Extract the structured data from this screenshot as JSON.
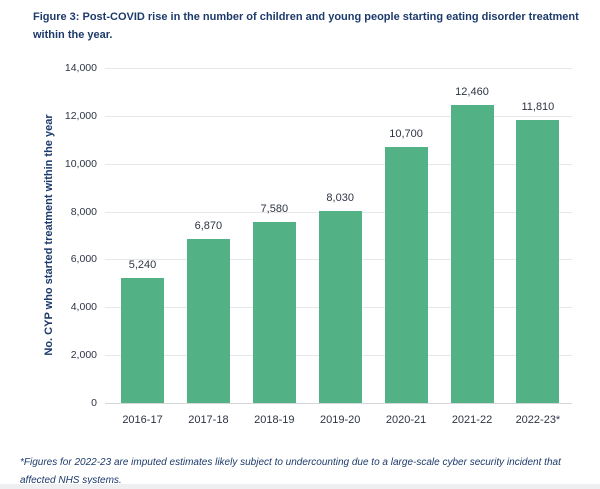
{
  "figure": {
    "title": "Figure 3: Post-COVID rise in the number of children and young people starting eating disorder treatment within the year.",
    "footnote": "*Figures for 2022-23 are imputed estimates likely subject to undercounting due to a large-scale cyber security incident that affected NHS systems."
  },
  "chart_data": {
    "type": "bar",
    "title": "Figure 3: Post-COVID rise in the number of children and young people starting eating disorder treatment within the year.",
    "categories": [
      "2016-17",
      "2017-18",
      "2018-19",
      "2019-20",
      "2020-21",
      "2021-22",
      "2022-23*"
    ],
    "values": [
      5240,
      6870,
      7580,
      8030,
      10700,
      12460,
      11810
    ],
    "value_labels": [
      "5,240",
      "6,870",
      "7,580",
      "8,030",
      "10,700",
      "12,460",
      "11,810"
    ],
    "xlabel": "",
    "ylabel": "No. CYP who started treatment within the year",
    "ylim": [
      0,
      14000
    ],
    "ytick_step": 2000,
    "ytick_labels": [
      "0",
      "2,000",
      "4,000",
      "6,000",
      "8,000",
      "10,000",
      "12,000",
      "14,000"
    ],
    "grid": "horizontal",
    "legend": "none",
    "bar_color": "#52b286",
    "label_color": "#2e3444",
    "accent_color": "#1c3a6b"
  }
}
